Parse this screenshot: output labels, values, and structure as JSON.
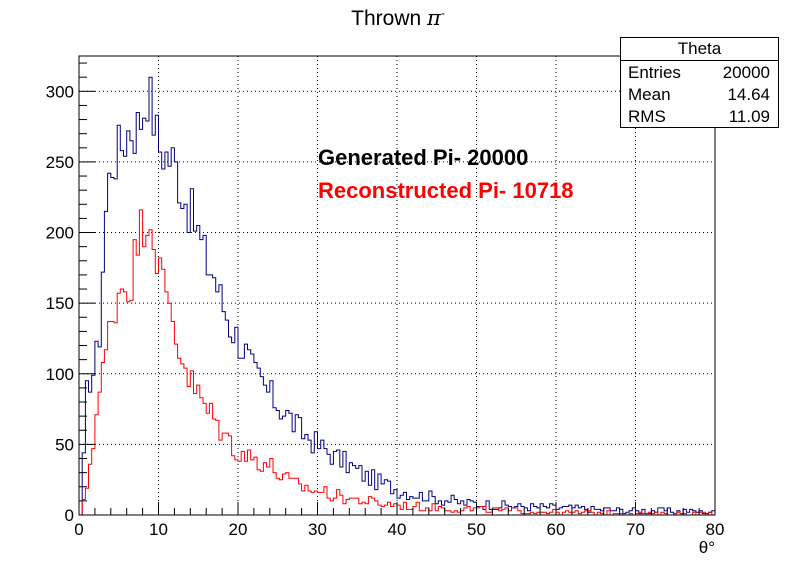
{
  "chart_data": {
    "type": "histogram",
    "title_text": "Thrown",
    "title_symbol": "π",
    "title_superscript": "-",
    "xlabel": "θ°",
    "ylabel": "",
    "xlim": [
      0,
      80
    ],
    "ylim": [
      0,
      325
    ],
    "xticks": [
      0,
      10,
      20,
      30,
      40,
      50,
      60,
      70,
      80
    ],
    "yticks": [
      0,
      50,
      100,
      150,
      200,
      250,
      300
    ],
    "grid": true,
    "bin_width": 0.4,
    "stats_box": {
      "name": "Theta",
      "rows": [
        {
          "label": "Entries",
          "value": "20000"
        },
        {
          "label": "Mean",
          "value": "14.64"
        },
        {
          "label": "RMS",
          "value": "11.09"
        }
      ]
    },
    "legend_text": [
      {
        "text": "Generated Pi- 20000",
        "color": "#000000"
      },
      {
        "text": "Reconstructed Pi- 10718",
        "color": "#ff0000"
      }
    ],
    "series": [
      {
        "name": "Generated Pi-",
        "color": "#00007f",
        "control_points": [
          [
            0.2,
            0
          ],
          [
            0.6,
            38
          ],
          [
            1.0,
            85
          ],
          [
            1.4,
            98
          ],
          [
            2.0,
            103
          ],
          [
            2.6,
            130
          ],
          [
            3.2,
            200
          ],
          [
            3.6,
            230
          ],
          [
            4.2,
            250
          ],
          [
            5.0,
            258
          ],
          [
            5.6,
            265
          ],
          [
            6.4,
            275
          ],
          [
            7.2,
            272
          ],
          [
            8.0,
            285
          ],
          [
            8.6,
            300
          ],
          [
            9.2,
            290
          ],
          [
            10.0,
            262
          ],
          [
            11.0,
            255
          ],
          [
            12.0,
            250
          ],
          [
            13.0,
            230
          ],
          [
            14.0,
            215
          ],
          [
            15.0,
            200
          ],
          [
            16.0,
            180
          ],
          [
            17.0,
            170
          ],
          [
            18.0,
            150
          ],
          [
            19.0,
            135
          ],
          [
            20.0,
            125
          ],
          [
            21.0,
            115
          ],
          [
            22.0,
            100
          ],
          [
            23.0,
            93
          ],
          [
            24.0,
            85
          ],
          [
            25.0,
            78
          ],
          [
            26.0,
            72
          ],
          [
            27.0,
            65
          ],
          [
            28.0,
            58
          ],
          [
            29.0,
            55
          ],
          [
            30.0,
            50
          ],
          [
            32.0,
            42
          ],
          [
            34.0,
            35
          ],
          [
            36.0,
            28
          ],
          [
            38.0,
            23
          ],
          [
            40.0,
            18
          ],
          [
            42.0,
            15
          ],
          [
            44.0,
            13
          ],
          [
            46.0,
            11
          ],
          [
            48.0,
            9
          ],
          [
            50.0,
            8
          ],
          [
            55.0,
            6
          ],
          [
            60.0,
            5
          ],
          [
            65.0,
            4
          ],
          [
            70.0,
            3
          ],
          [
            75.0,
            3
          ],
          [
            80.0,
            2
          ]
        ]
      },
      {
        "name": "Reconstructed Pi-",
        "color": "#ff0000",
        "control_points": [
          [
            0.2,
            0
          ],
          [
            0.8,
            12
          ],
          [
            1.2,
            30
          ],
          [
            1.6,
            45
          ],
          [
            2.2,
            72
          ],
          [
            3.0,
            100
          ],
          [
            3.8,
            130
          ],
          [
            4.6,
            150
          ],
          [
            5.4,
            165
          ],
          [
            6.4,
            160
          ],
          [
            7.2,
            190
          ],
          [
            8.0,
            205
          ],
          [
            8.6,
            215
          ],
          [
            9.2,
            205
          ],
          [
            10.0,
            180
          ],
          [
            10.8,
            155
          ],
          [
            11.6,
            145
          ],
          [
            12.4,
            120
          ],
          [
            13.2,
            110
          ],
          [
            14.0,
            95
          ],
          [
            15.0,
            85
          ],
          [
            16.0,
            75
          ],
          [
            17.0,
            68
          ],
          [
            18.0,
            60
          ],
          [
            18.4,
            55
          ],
          [
            19.0,
            52
          ],
          [
            20.0,
            45
          ],
          [
            21.0,
            42
          ],
          [
            22.0,
            40
          ],
          [
            23.0,
            38
          ],
          [
            24.0,
            35
          ],
          [
            25.0,
            30
          ],
          [
            26.0,
            25
          ],
          [
            27.0,
            22
          ],
          [
            28.0,
            20
          ],
          [
            30.0,
            17
          ],
          [
            32.0,
            14
          ],
          [
            34.0,
            12
          ],
          [
            36.0,
            10
          ],
          [
            38.0,
            8
          ],
          [
            40.0,
            7
          ],
          [
            42.0,
            6
          ],
          [
            45.0,
            5
          ],
          [
            50.0,
            4
          ],
          [
            55.0,
            3
          ],
          [
            60.0,
            2
          ],
          [
            70.0,
            1
          ],
          [
            80.0,
            1
          ]
        ]
      }
    ]
  }
}
